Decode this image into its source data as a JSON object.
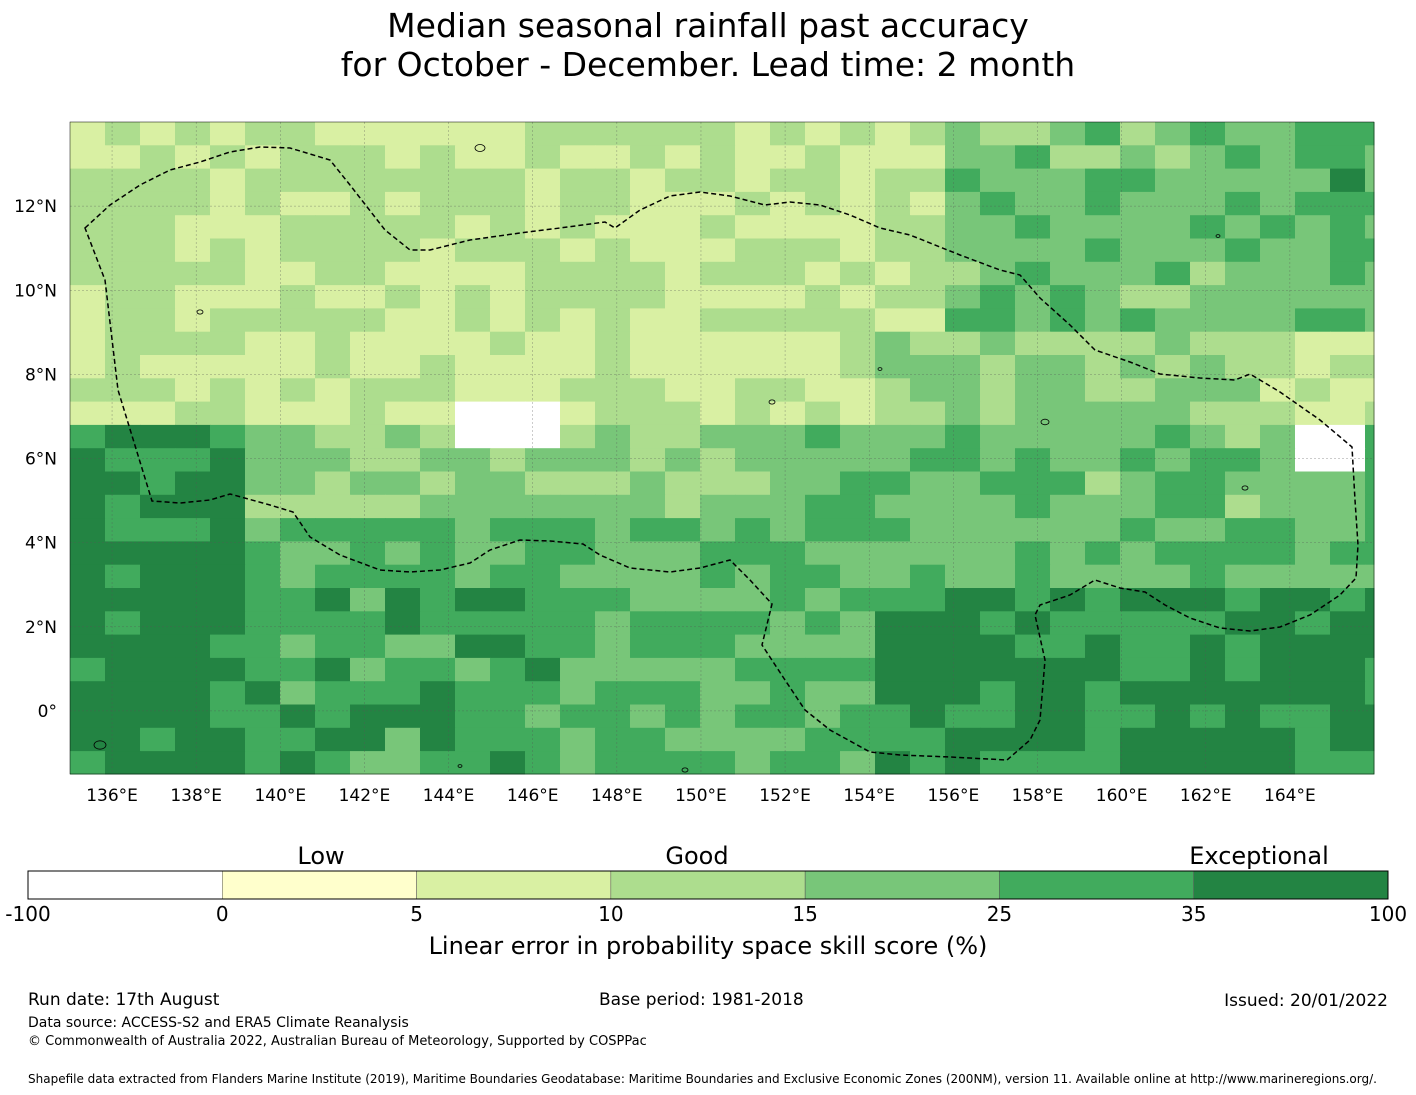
{
  "title": {
    "line1": "Median seasonal rainfall past accuracy",
    "line2": "for October - December. Lead time: 2 month"
  },
  "map": {
    "lon_range": [
      135,
      166
    ],
    "lat_range": [
      -1.5,
      14
    ],
    "lon_ticks": [
      "136°E",
      "138°E",
      "140°E",
      "142°E",
      "144°E",
      "146°E",
      "148°E",
      "150°E",
      "152°E",
      "154°E",
      "156°E",
      "158°E",
      "160°E",
      "162°E",
      "164°E"
    ],
    "lat_ticks": [
      "12°N",
      "10°N",
      "8°N",
      "6°N",
      "4°N",
      "2°N",
      "0°"
    ],
    "gridlines": true,
    "eez_boundary": "dashed",
    "data_note": "gridded LEPS skill score, categorized by colorbar bins"
  },
  "colorbar": {
    "categories": [
      "Low",
      "Good",
      "Exceptional"
    ],
    "ticks": [
      "-100",
      "0",
      "5",
      "10",
      "15",
      "25",
      "35",
      "100"
    ],
    "colors": [
      "#ffffff",
      "#ffffcc",
      "#d9f0a3",
      "#addd8e",
      "#78c679",
      "#41ab5d",
      "#238443"
    ],
    "label": "Linear error in probability space skill score (%)"
  },
  "footer": {
    "run_date": "Run date: 17th August",
    "base_period": "Base period: 1981-2018",
    "issued": "Issued: 20/01/2022",
    "data_source": "Data source: ACCESS-S2 and ERA5 Climate Reanalysis",
    "copyright": "© Commonwealth of Australia 2022, Australian Bureau of Meteorology, Supported by COSPPac",
    "shapefile": "Shapefile data extracted from Flanders Marine Institute (2019), Maritime Boundaries Geodatabase: Maritime Boundaries and Exclusive Economic Zones (200NM), version 11. Available online at http://www.marineregions.org/."
  }
}
